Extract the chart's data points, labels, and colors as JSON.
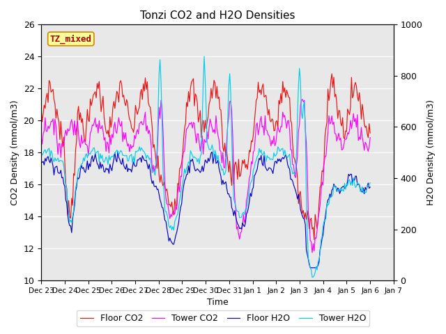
{
  "title": "Tonzi CO2 and H2O Densities",
  "xlabel": "Time",
  "ylabel_left": "CO2 Density (mmol/m3)",
  "ylabel_right": "H2O Density (mmol/m3)",
  "ylim_left": [
    10,
    26
  ],
  "ylim_right": [
    0,
    1000
  ],
  "annotation_text": "TZ_mixed",
  "annotation_color": "#aa0000",
  "annotation_bg": "#ffff99",
  "annotation_edge": "#cc8800",
  "plot_bg": "#e8e8e8",
  "fig_bg": "#ffffff",
  "colors": {
    "floor_co2": "#ee1111",
    "tower_co2": "#ff00ff",
    "floor_h2o": "#0000cc",
    "tower_h2o": "#00ccee"
  },
  "legend_labels": [
    "Floor CO2",
    "Tower CO2",
    "Floor H2O",
    "Tower H2O"
  ],
  "xtick_labels": [
    "Dec 23",
    "Dec 24",
    "Dec 25",
    "Dec 26",
    "Dec 27",
    "Dec 28",
    "Dec 29",
    "Dec 30",
    "Dec 31",
    "Jan 1",
    "Jan 2",
    "Jan 3",
    "Jan 4",
    "Jan 5",
    "Jan 6",
    "Jan 7"
  ],
  "n_days": 14,
  "n_per_day": 24,
  "seed": 7
}
